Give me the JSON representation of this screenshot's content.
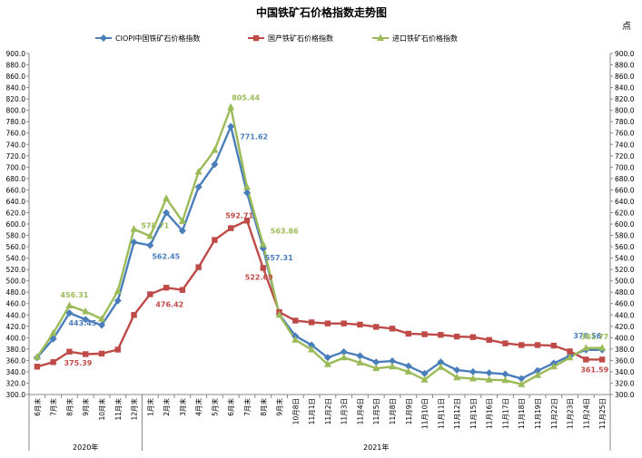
{
  "chart_data": {
    "type": "line",
    "title": "中国铁矿石价格指数走势图",
    "unit_label": "点",
    "ylim": [
      300,
      900
    ],
    "ytick_step": 20,
    "grid": false,
    "legend_position": "top",
    "categories": [
      "6月末",
      "7月末",
      "8月末",
      "9月末",
      "10月末",
      "11月末",
      "12月末",
      "1月末",
      "2月末",
      "3月末",
      "4月末",
      "5月末",
      "6月末",
      "7月末",
      "8月末",
      "9月末",
      "10月8日",
      "11月1日",
      "11月2日",
      "11月3日",
      "11月4日",
      "11月5日",
      "11月8日",
      "11月9日",
      "11月10日",
      "11月11日",
      "11月12日",
      "11月15日",
      "11月16日",
      "11月17日",
      "11月18日",
      "11月19日",
      "11月22日",
      "11月23日",
      "11月24日",
      "11月25日"
    ],
    "year_groups": [
      {
        "label": "2020年",
        "start": 0,
        "end": 6
      },
      {
        "label": "2021年",
        "start": 7,
        "end": 35
      }
    ],
    "series": [
      {
        "name": "CIOPI中国铁矿石价格指数",
        "color": "#4a7ebb",
        "marker": "diamond",
        "values": [
          365,
          398,
          443.45,
          432,
          422,
          465,
          568,
          562.45,
          620,
          588,
          665,
          705,
          771.62,
          655,
          557.31,
          441,
          403,
          387,
          365,
          375,
          368,
          357,
          359,
          350,
          337,
          357,
          343,
          340,
          338,
          336,
          328,
          342,
          355,
          368,
          378.56,
          378.56
        ]
      },
      {
        "name": "国产铁矿石价格指数",
        "color": "#be4b48",
        "marker": "square",
        "values": [
          349,
          357,
          375.39,
          371,
          372,
          379,
          440,
          476.42,
          488,
          484,
          524,
          572,
          592.71,
          606,
          522.69,
          445,
          430,
          427,
          425,
          425,
          423,
          419,
          416,
          407,
          406,
          405,
          402,
          401,
          396,
          390,
          387,
          387,
          386,
          376,
          361.59,
          361.59
        ]
      },
      {
        "name": "进口铁矿石价格指数",
        "color": "#9bbb59",
        "marker": "triangle",
        "values": [
          366,
          408,
          456.31,
          446,
          433,
          482,
          591,
          578.71,
          645,
          605,
          692,
          730,
          805.44,
          665,
          563.86,
          440,
          396,
          379,
          353,
          365,
          356,
          346,
          349,
          340,
          326,
          348,
          330,
          328,
          326,
          325,
          318,
          334,
          349,
          365,
          381.77,
          381.77
        ]
      }
    ],
    "data_labels": [
      {
        "series": 0,
        "index": 2,
        "text": "443.45"
      },
      {
        "series": 0,
        "index": 7,
        "text": "562.45"
      },
      {
        "series": 0,
        "index": 12,
        "text": "771.62"
      },
      {
        "series": 0,
        "index": 14,
        "text": "557.31"
      },
      {
        "series": 0,
        "index": 34,
        "text": "378.56"
      },
      {
        "series": 1,
        "index": 2,
        "text": "375.39"
      },
      {
        "series": 1,
        "index": 7,
        "text": "476.42"
      },
      {
        "series": 1,
        "index": 12,
        "text": "592.71"
      },
      {
        "series": 1,
        "index": 14,
        "text": "522.69"
      },
      {
        "series": 1,
        "index": 34,
        "text": "361.59"
      },
      {
        "series": 2,
        "index": 2,
        "text": "456.31"
      },
      {
        "series": 2,
        "index": 7,
        "text": "578.71"
      },
      {
        "series": 2,
        "index": 12,
        "text": "805.44"
      },
      {
        "series": 2,
        "index": 14,
        "text": "563.86"
      },
      {
        "series": 2,
        "index": 34,
        "text": "381.77"
      }
    ]
  }
}
